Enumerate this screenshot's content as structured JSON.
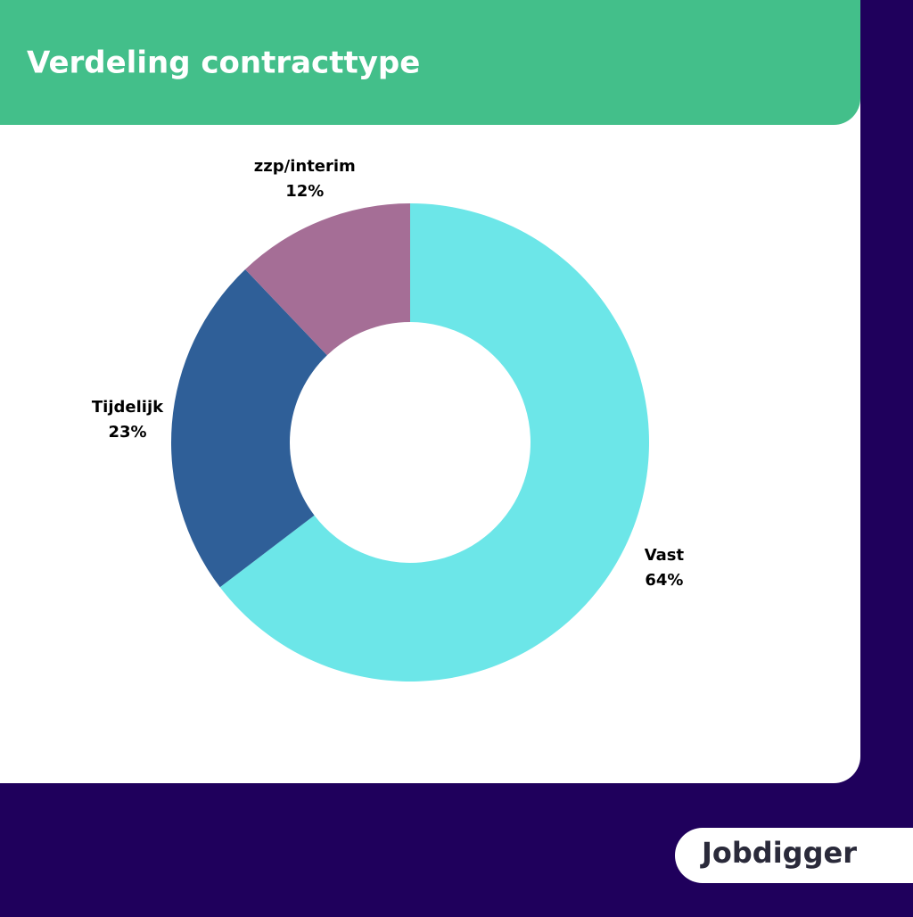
{
  "chart_data": {
    "type": "donut",
    "title": "Verdeling contracttype",
    "categories": [
      "Vast",
      "Tijdelijk",
      "zzp/interim"
    ],
    "values": [
      64,
      23,
      12
    ],
    "value_labels": [
      "64%",
      "23%",
      "12%"
    ],
    "colors": [
      "#6ce6e8",
      "#2f5f98",
      "#a56e96"
    ]
  },
  "brand": "Jobdigger"
}
